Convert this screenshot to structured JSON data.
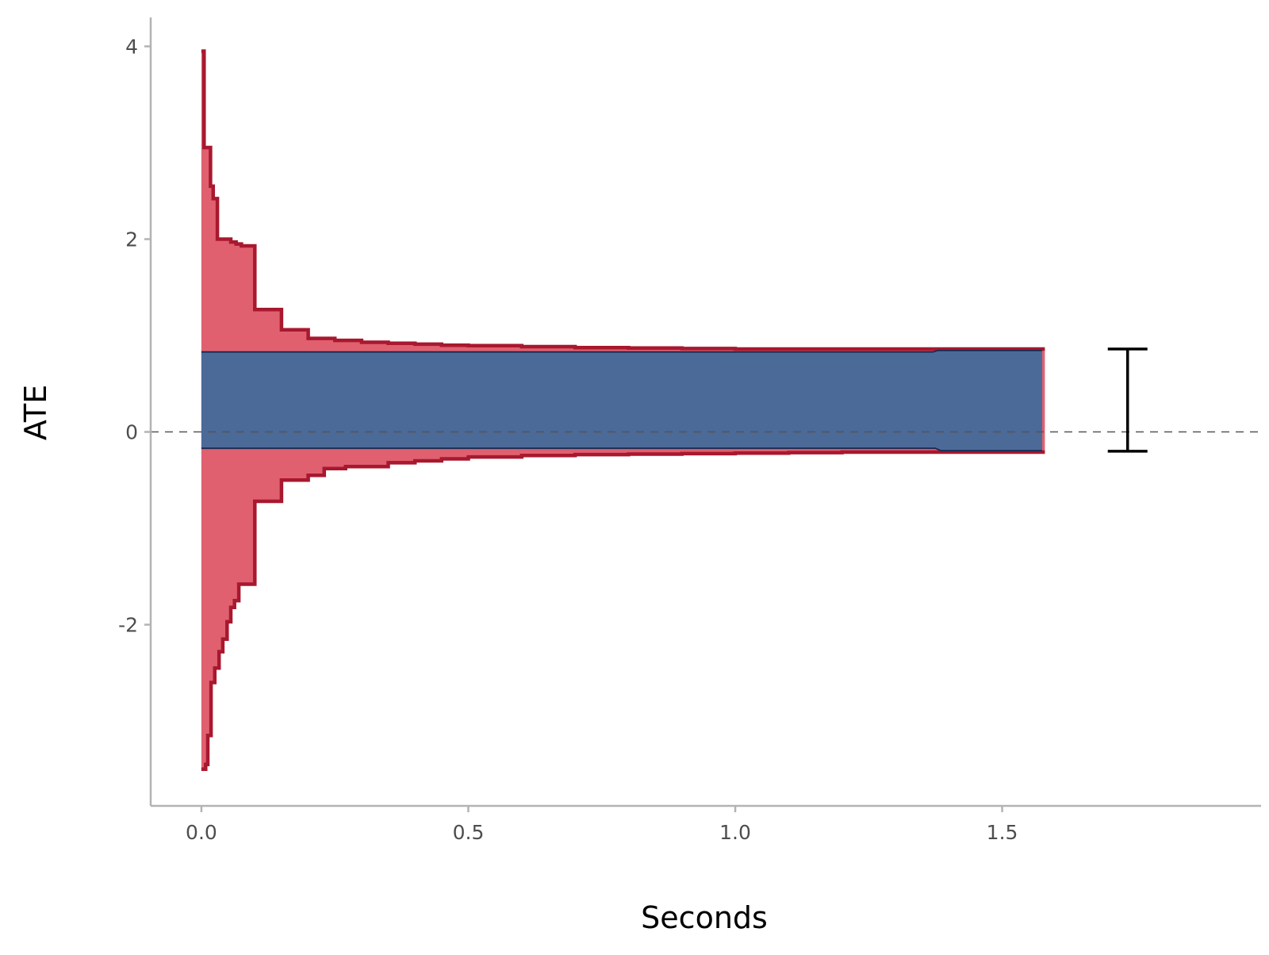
{
  "chart_data": {
    "type": "area",
    "title": "",
    "xlabel": "Seconds",
    "ylabel": "ATE",
    "xlim": [
      -0.095,
      1.985
    ],
    "ylim": [
      -3.88,
      4.3
    ],
    "x_ticks": [
      {
        "value": 0.0,
        "label": "0.0"
      },
      {
        "value": 0.5,
        "label": "0.5"
      },
      {
        "value": 1.0,
        "label": "1.0"
      },
      {
        "value": 1.5,
        "label": "1.5"
      }
    ],
    "y_ticks": [
      {
        "value": -2,
        "label": "-2"
      },
      {
        "value": 0,
        "label": "0"
      },
      {
        "value": 2,
        "label": "2"
      },
      {
        "value": 4,
        "label": "4"
      }
    ],
    "reference_line": {
      "y": 0,
      "style": "dashed",
      "color": "#555555"
    },
    "grid": false,
    "legend": "none",
    "series": [
      {
        "kind": "step_band",
        "fill_color": "#e06070",
        "line_color": "#a8182e",
        "upper": {
          "x": [
            0.0,
            0.005,
            0.017,
            0.022,
            0.03,
            0.045,
            0.055,
            0.065,
            0.075,
            0.085,
            0.1,
            0.15,
            0.2,
            0.25,
            0.3,
            0.35,
            0.4,
            0.45,
            0.5,
            0.6,
            0.7,
            0.8,
            0.9,
            1.0,
            1.1,
            1.2,
            1.3,
            1.4,
            1.5,
            1.58
          ],
          "y": [
            3.95,
            2.95,
            2.55,
            2.42,
            2.0,
            2.0,
            1.97,
            1.95,
            1.93,
            1.93,
            1.27,
            1.06,
            0.97,
            0.95,
            0.93,
            0.92,
            0.91,
            0.9,
            0.895,
            0.885,
            0.875,
            0.87,
            0.865,
            0.86,
            0.86,
            0.86,
            0.86,
            0.86,
            0.86,
            0.86
          ]
        },
        "lower": {
          "x": [
            0.0,
            0.008,
            0.012,
            0.018,
            0.025,
            0.033,
            0.04,
            0.048,
            0.055,
            0.062,
            0.07,
            0.1,
            0.15,
            0.18,
            0.2,
            0.23,
            0.27,
            0.35,
            0.4,
            0.45,
            0.5,
            0.6,
            0.7,
            0.8,
            0.9,
            1.0,
            1.1,
            1.2,
            1.3,
            1.4,
            1.5,
            1.58
          ],
          "y": [
            -3.5,
            -3.45,
            -3.15,
            -2.6,
            -2.45,
            -2.28,
            -2.15,
            -1.97,
            -1.82,
            -1.75,
            -1.58,
            -0.72,
            -0.5,
            -0.5,
            -0.45,
            -0.38,
            -0.36,
            -0.32,
            -0.3,
            -0.28,
            -0.26,
            -0.245,
            -0.235,
            -0.23,
            -0.225,
            -0.22,
            -0.215,
            -0.21,
            -0.21,
            -0.21,
            -0.21,
            -0.21
          ]
        }
      },
      {
        "kind": "band",
        "fill_color": "#4c6a98",
        "line_color": "#1a2a50",
        "upper": {
          "x": [
            0.0,
            1.37,
            1.38,
            1.575
          ],
          "y": [
            0.83,
            0.83,
            0.845,
            0.845
          ]
        },
        "lower": {
          "x": [
            0.0,
            1.375,
            1.385,
            1.575
          ],
          "y": [
            -0.17,
            -0.17,
            -0.195,
            -0.195
          ]
        }
      }
    ],
    "error_bar": {
      "x": 1.735,
      "y_low": -0.2,
      "y_high": 0.86,
      "color": "#000000"
    }
  }
}
